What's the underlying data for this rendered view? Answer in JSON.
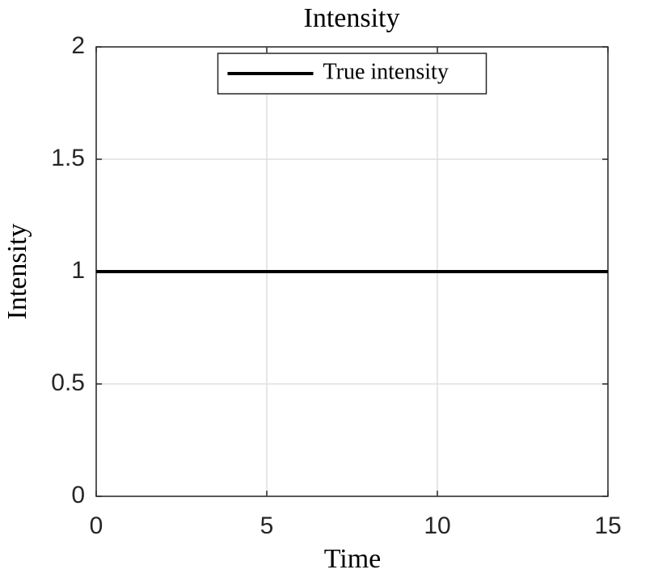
{
  "chart_data": {
    "type": "line",
    "title": "Intensity",
    "xlabel": "Time",
    "ylabel": "Intensity",
    "x": [
      0,
      15
    ],
    "series": [
      {
        "name": "True intensity",
        "color": "#000000",
        "values": [
          1,
          1
        ]
      }
    ],
    "xlim": [
      0,
      15
    ],
    "ylim": [
      0,
      2
    ],
    "xticks": [
      0,
      5,
      10,
      15
    ],
    "yticks": [
      0,
      0.5,
      1,
      1.5,
      2
    ],
    "grid": true,
    "legend": "upper center"
  }
}
